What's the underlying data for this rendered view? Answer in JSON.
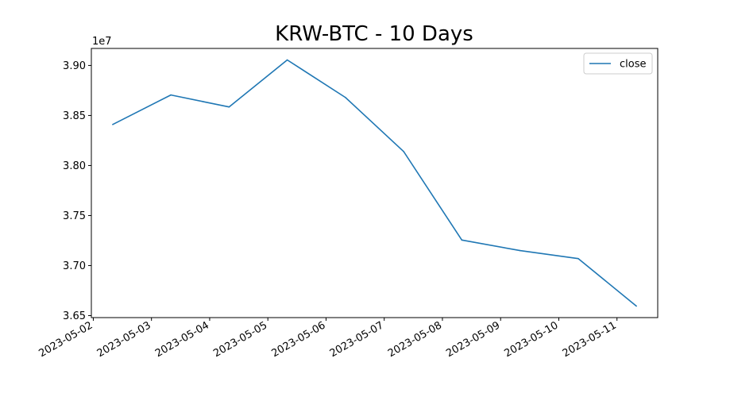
{
  "chart_data": {
    "type": "line",
    "title": "KRW-BTC - 10 Days",
    "xlabel": "",
    "ylabel": "",
    "offset_text": "1e7",
    "x": [
      "2023-05-02T08:00",
      "2023-05-03T08:00",
      "2023-05-04T08:00",
      "2023-05-05T08:00",
      "2023-05-06T08:00",
      "2023-05-07T08:00",
      "2023-05-08T08:00",
      "2023-05-09T08:00",
      "2023-05-10T08:00",
      "2023-05-11T08:00"
    ],
    "series": [
      {
        "name": "close",
        "color": "#1f77b4",
        "values": [
          38410000,
          38705000,
          38585000,
          39055000,
          38680000,
          38140000,
          37255000,
          37150000,
          37070000,
          36595000
        ]
      }
    ],
    "x_ticks": [
      "2023-05-02",
      "2023-05-03",
      "2023-05-04",
      "2023-05-05",
      "2023-05-06",
      "2023-05-07",
      "2023-05-08",
      "2023-05-09",
      "2023-05-10",
      "2023-05-11"
    ],
    "y_ticks": [
      {
        "value": 36500000,
        "label": "3.65"
      },
      {
        "value": 37000000,
        "label": "3.70"
      },
      {
        "value": 37500000,
        "label": "3.75"
      },
      {
        "value": 38000000,
        "label": "3.80"
      },
      {
        "value": 38500000,
        "label": "3.85"
      },
      {
        "value": 39000000,
        "label": "3.90"
      }
    ],
    "xlim": [
      "2023-05-01T23:12",
      "2023-05-11T16:48"
    ],
    "ylim": [
      36480000,
      39170000
    ],
    "grid": false,
    "legend": "top-right"
  }
}
